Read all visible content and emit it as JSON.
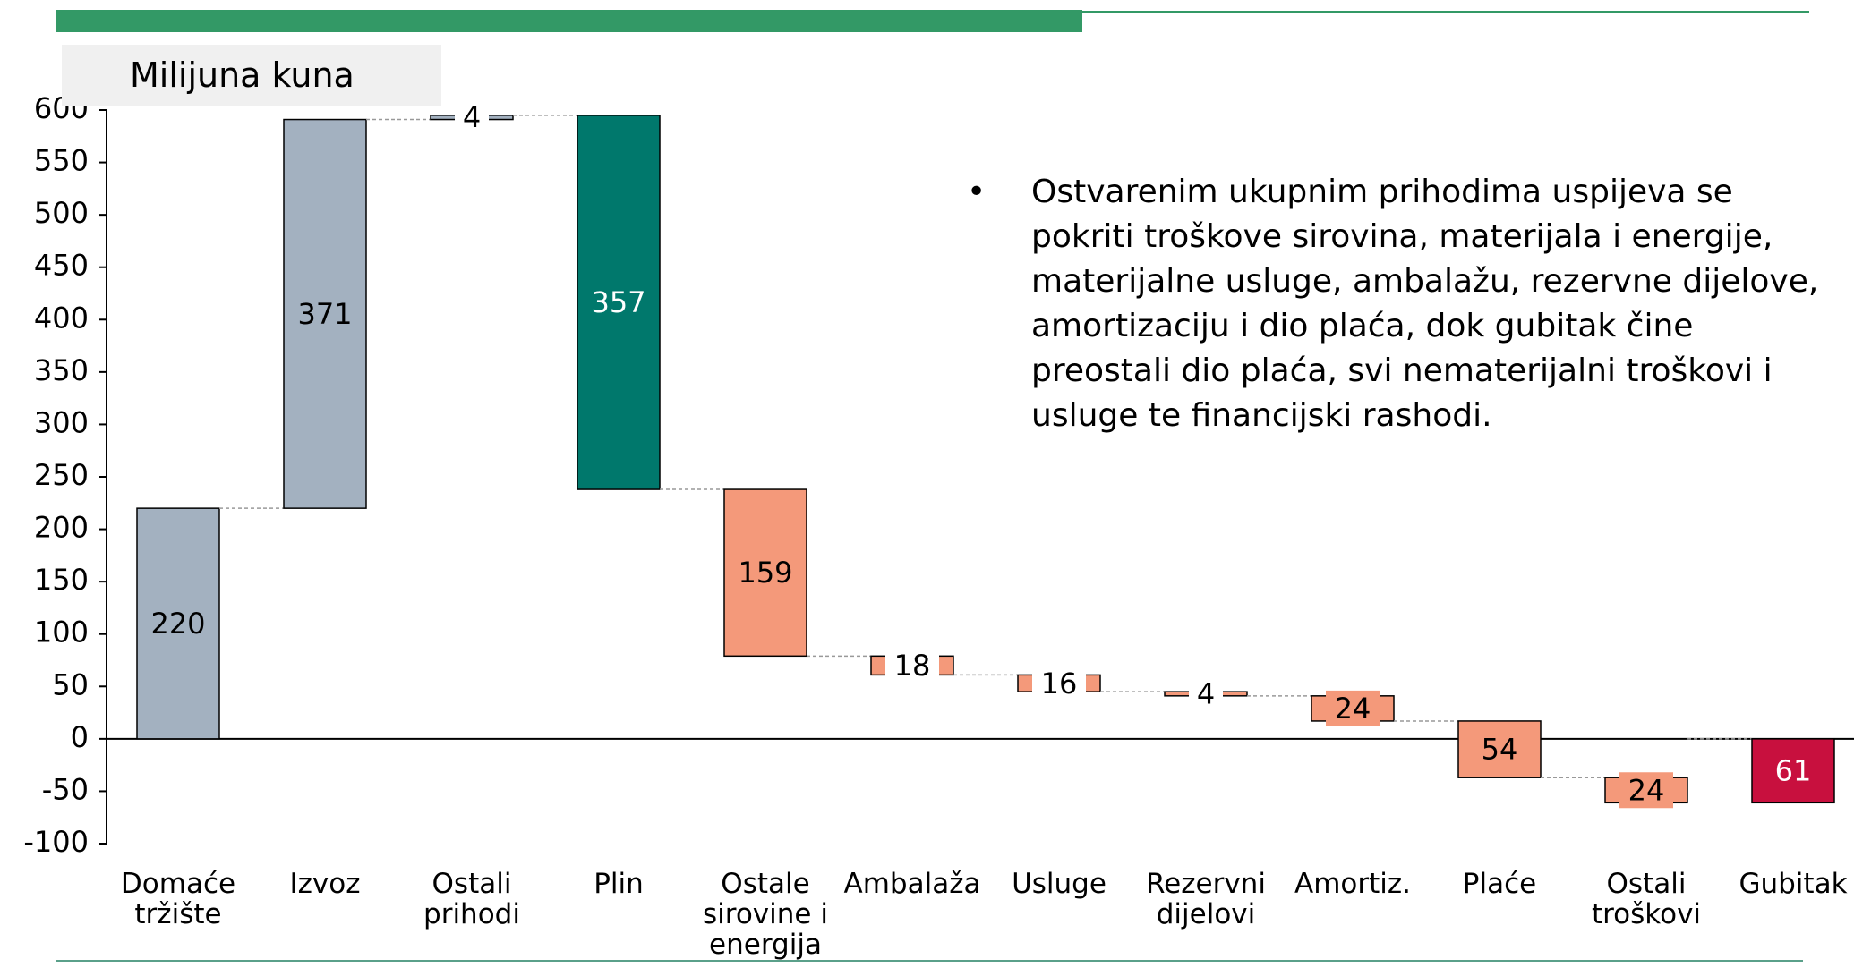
{
  "chart_data": {
    "type": "waterfall",
    "axis_title": "Milijuna kuna",
    "note": "Ostvarenim ukupnim prihodima uspijeva se pokriti troškove sirovina, materijala i energije, materijalne usluge, ambalažu, rezervne dijelove, amortizaciju i dio plaća, dok gubitak čine preostali dio plaća, svi nematerijalni troškovi i usluge te financijski rashodi.",
    "categories": [
      "Domaće\ntržište",
      "Izvoz",
      "Ostali\nprihodi",
      "Plin",
      "Ostale\nsirovine i\nenergija",
      "Ambalaža",
      "Usluge",
      "Rezervni\ndijelovi",
      "Amortiz.",
      "Plaće",
      "Ostali\ntroškovi",
      "Gubitak"
    ],
    "values": [
      220,
      371,
      4,
      357,
      159,
      18,
      16,
      4,
      24,
      54,
      24,
      61
    ],
    "kinds": [
      "increase",
      "increase",
      "increase",
      "decrease",
      "decrease",
      "decrease",
      "decrease",
      "decrease",
      "decrease",
      "decrease",
      "decrease",
      "loss"
    ],
    "colors": [
      "#a3b1c0",
      "#a3b1c0",
      "#a3b1c0",
      "#00786c",
      "#f4997a",
      "#f4997a",
      "#f4997a",
      "#f4997a",
      "#f4997a",
      "#f4997a",
      "#f4997a",
      "#c8103e"
    ],
    "label_colors": [
      "#000000",
      "#000000",
      "#000000",
      "#ffffff",
      "#000000",
      "#000000",
      "#000000",
      "#000000",
      "#000000",
      "#000000",
      "#000000",
      "#ffffff"
    ],
    "ylim": [
      -100,
      600
    ],
    "yticks": [
      -100,
      -50,
      0,
      50,
      100,
      150,
      200,
      250,
      300,
      350,
      400,
      450,
      500,
      550,
      600
    ]
  }
}
